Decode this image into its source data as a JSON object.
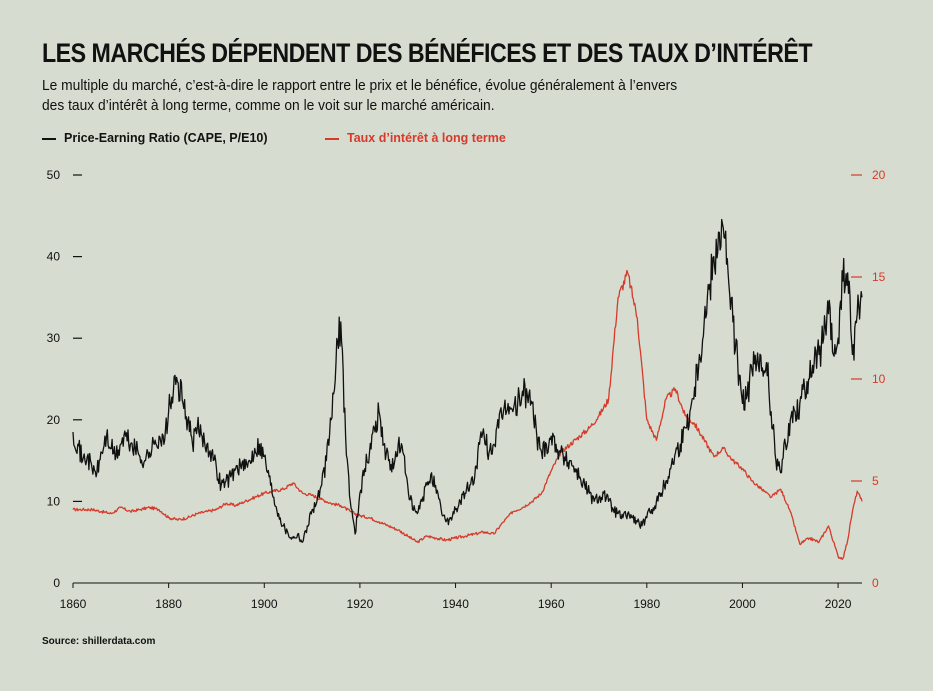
{
  "header": {
    "title": "LES MARCHÉS DÉPENDENT DES BÉNÉFICES ET DES TAUX D’INTÉRÊT",
    "subtitle": "Le multiple du marché, c’est-à-dire le rapport entre le prix et le bénéfice, évolue généralement à l’envers des taux d’intérêt à long terme, comme on le voit sur le marché américain."
  },
  "source": "Source: shillerdata.com",
  "colors": {
    "cape": "#111111",
    "rate": "#d73a2a",
    "background": "#d6dccf"
  },
  "chart_data": {
    "type": "line",
    "title": "LES MARCHÉS DÉPENDENT DES BÉNÉFICES ET DES TAUX D’INTÉRÊT",
    "xlim": [
      1860,
      2025
    ],
    "x_ticks": [
      1860,
      1880,
      1900,
      1920,
      1940,
      1960,
      1980,
      2000,
      2020
    ],
    "left_axis": {
      "ylim": [
        0,
        50
      ],
      "ticks": [
        0,
        10,
        20,
        30,
        40,
        50
      ]
    },
    "right_axis": {
      "ylim": [
        0,
        20
      ],
      "ticks": [
        0,
        5,
        10,
        15,
        20
      ]
    },
    "legend": [
      {
        "label": "Price-Earning Ratio (CAPE, P/E10)",
        "color": "#111111",
        "axis": "left"
      },
      {
        "label": "Taux d’intérêt à long terme",
        "color": "#d73a2a",
        "axis": "right"
      }
    ],
    "series": [
      {
        "name": "Price-Earning Ratio (CAPE, P/E10)",
        "axis": "left",
        "points": [
          [
            1860,
            18.5
          ],
          [
            1861,
            17
          ],
          [
            1862,
            15
          ],
          [
            1863,
            15.5
          ],
          [
            1864,
            14
          ],
          [
            1865,
            13.5
          ],
          [
            1866,
            16
          ],
          [
            1867,
            18
          ],
          [
            1868,
            16.5
          ],
          [
            1869,
            15.5
          ],
          [
            1870,
            17
          ],
          [
            1871,
            18
          ],
          [
            1872,
            17
          ],
          [
            1873,
            16.5
          ],
          [
            1874,
            15.5
          ],
          [
            1875,
            15
          ],
          [
            1876,
            16
          ],
          [
            1877,
            17
          ],
          [
            1878,
            18
          ],
          [
            1879,
            17
          ],
          [
            1880,
            21
          ],
          [
            1881,
            23.5
          ],
          [
            1882,
            24.5
          ],
          [
            1883,
            22
          ],
          [
            1884,
            20
          ],
          [
            1885,
            17
          ],
          [
            1886,
            19
          ],
          [
            1887,
            18
          ],
          [
            1888,
            17
          ],
          [
            1889,
            16
          ],
          [
            1890,
            14
          ],
          [
            1891,
            12
          ],
          [
            1892,
            12.5
          ],
          [
            1893,
            13
          ],
          [
            1894,
            14
          ],
          [
            1895,
            14.5
          ],
          [
            1896,
            14
          ],
          [
            1897,
            15
          ],
          [
            1898,
            16.5
          ],
          [
            1899,
            17
          ],
          [
            1900,
            15.5
          ],
          [
            1901,
            13
          ],
          [
            1902,
            10.5
          ],
          [
            1903,
            8.5
          ],
          [
            1904,
            7
          ],
          [
            1905,
            6
          ],
          [
            1906,
            5.5
          ],
          [
            1907,
            6
          ],
          [
            1908,
            5
          ],
          [
            1909,
            7
          ],
          [
            1910,
            9
          ],
          [
            1911,
            10
          ],
          [
            1912,
            12
          ],
          [
            1913,
            15
          ],
          [
            1914,
            20
          ],
          [
            1915,
            27
          ],
          [
            1916,
            32
          ],
          [
            1917,
            18
          ],
          [
            1918,
            10
          ],
          [
            1919,
            6
          ],
          [
            1920,
            11
          ],
          [
            1921,
            14
          ],
          [
            1922,
            16
          ],
          [
            1923,
            19
          ],
          [
            1924,
            21
          ],
          [
            1925,
            17
          ],
          [
            1926,
            15
          ],
          [
            1927,
            14
          ],
          [
            1928,
            17
          ],
          [
            1929,
            16
          ],
          [
            1930,
            12
          ],
          [
            1931,
            9
          ],
          [
            1932,
            8.5
          ],
          [
            1933,
            10
          ],
          [
            1934,
            12
          ],
          [
            1935,
            13.5
          ],
          [
            1936,
            11
          ],
          [
            1937,
            9
          ],
          [
            1938,
            7.5
          ],
          [
            1939,
            8
          ],
          [
            1940,
            9
          ],
          [
            1941,
            10
          ],
          [
            1942,
            11
          ],
          [
            1943,
            12
          ],
          [
            1944,
            13
          ],
          [
            1945,
            17
          ],
          [
            1946,
            18
          ],
          [
            1947,
            16
          ],
          [
            1948,
            17
          ],
          [
            1949,
            19
          ],
          [
            1950,
            21
          ],
          [
            1951,
            22
          ],
          [
            1952,
            21
          ],
          [
            1953,
            22
          ],
          [
            1954,
            23.5
          ],
          [
            1955,
            23
          ],
          [
            1956,
            22
          ],
          [
            1957,
            18
          ],
          [
            1958,
            16
          ],
          [
            1959,
            17
          ],
          [
            1960,
            18
          ],
          [
            1961,
            17
          ],
          [
            1962,
            16
          ],
          [
            1963,
            15
          ],
          [
            1964,
            15
          ],
          [
            1965,
            14
          ],
          [
            1966,
            13
          ],
          [
            1967,
            12
          ],
          [
            1968,
            11
          ],
          [
            1969,
            10
          ],
          [
            1970,
            10.5
          ],
          [
            1971,
            11
          ],
          [
            1972,
            10
          ],
          [
            1973,
            9
          ],
          [
            1974,
            8.5
          ],
          [
            1975,
            8
          ],
          [
            1976,
            8.5
          ],
          [
            1977,
            8
          ],
          [
            1978,
            7.5
          ],
          [
            1979,
            7
          ],
          [
            1980,
            8
          ],
          [
            1981,
            9
          ],
          [
            1982,
            10
          ],
          [
            1983,
            11
          ],
          [
            1984,
            12.5
          ],
          [
            1985,
            14
          ],
          [
            1986,
            16
          ],
          [
            1987,
            17
          ],
          [
            1988,
            19
          ],
          [
            1989,
            21
          ],
          [
            1990,
            24
          ],
          [
            1991,
            28
          ],
          [
            1992,
            32
          ],
          [
            1993,
            36
          ],
          [
            1994,
            40
          ],
          [
            1995,
            43
          ],
          [
            1996,
            43.5
          ],
          [
            1997,
            38
          ],
          [
            1998,
            32
          ],
          [
            1999,
            27
          ],
          [
            2000,
            22
          ],
          [
            2001,
            23
          ],
          [
            2002,
            26
          ],
          [
            2003,
            27
          ],
          [
            2004,
            26
          ],
          [
            2005,
            27
          ],
          [
            2006,
            21
          ],
          [
            2007,
            15
          ],
          [
            2008,
            13.5
          ],
          [
            2009,
            17
          ],
          [
            2010,
            20
          ],
          [
            2011,
            21
          ],
          [
            2012,
            22
          ],
          [
            2013,
            24
          ],
          [
            2014,
            25
          ],
          [
            2015,
            27
          ],
          [
            2016,
            28
          ],
          [
            2017,
            30
          ],
          [
            2018,
            33
          ],
          [
            2019,
            28
          ],
          [
            2020,
            30
          ],
          [
            2021,
            37
          ],
          [
            2022,
            38
          ],
          [
            2023,
            28
          ],
          [
            2024,
            33
          ],
          [
            2025,
            35
          ]
        ]
      },
      {
        "name": "Taux d’intérêt à long terme",
        "axis": "right",
        "points": [
          [
            1860,
            3.6
          ],
          [
            1862,
            3.6
          ],
          [
            1864,
            3.6
          ],
          [
            1866,
            3.5
          ],
          [
            1868,
            3.4
          ],
          [
            1870,
            3.7
          ],
          [
            1872,
            3.5
          ],
          [
            1874,
            3.6
          ],
          [
            1876,
            3.7
          ],
          [
            1878,
            3.6
          ],
          [
            1880,
            3.2
          ],
          [
            1882,
            3.1
          ],
          [
            1884,
            3.2
          ],
          [
            1886,
            3.4
          ],
          [
            1888,
            3.5
          ],
          [
            1890,
            3.6
          ],
          [
            1892,
            3.9
          ],
          [
            1894,
            3.8
          ],
          [
            1896,
            4
          ],
          [
            1898,
            4.2
          ],
          [
            1900,
            4.4
          ],
          [
            1902,
            4.5
          ],
          [
            1904,
            4.6
          ],
          [
            1906,
            4.9
          ],
          [
            1908,
            4.4
          ],
          [
            1910,
            4.3
          ],
          [
            1912,
            4.1
          ],
          [
            1914,
            3.9
          ],
          [
            1916,
            3.8
          ],
          [
            1918,
            3.5
          ],
          [
            1920,
            3.3
          ],
          [
            1922,
            3.2
          ],
          [
            1924,
            3
          ],
          [
            1926,
            2.8
          ],
          [
            1928,
            2.6
          ],
          [
            1930,
            2.3
          ],
          [
            1932,
            2
          ],
          [
            1934,
            2.3
          ],
          [
            1936,
            2.2
          ],
          [
            1938,
            2.1
          ],
          [
            1940,
            2.2
          ],
          [
            1942,
            2.3
          ],
          [
            1944,
            2.4
          ],
          [
            1946,
            2.5
          ],
          [
            1948,
            2.4
          ],
          [
            1950,
            3
          ],
          [
            1952,
            3.5
          ],
          [
            1954,
            3.7
          ],
          [
            1956,
            4
          ],
          [
            1958,
            4.4
          ],
          [
            1960,
            5.5
          ],
          [
            1962,
            6.4
          ],
          [
            1964,
            6.8
          ],
          [
            1966,
            7.2
          ],
          [
            1968,
            7.6
          ],
          [
            1970,
            8.2
          ],
          [
            1972,
            9
          ],
          [
            1974,
            14
          ],
          [
            1976,
            15.2
          ],
          [
            1978,
            13
          ],
          [
            1980,
            8
          ],
          [
            1982,
            7
          ],
          [
            1984,
            9
          ],
          [
            1986,
            9.5
          ],
          [
            1988,
            8.2
          ],
          [
            1990,
            7.8
          ],
          [
            1992,
            7
          ],
          [
            1994,
            6.2
          ],
          [
            1996,
            6.6
          ],
          [
            1998,
            6
          ],
          [
            2000,
            5.6
          ],
          [
            2002,
            5
          ],
          [
            2004,
            4.6
          ],
          [
            2006,
            4.2
          ],
          [
            2008,
            4.6
          ],
          [
            2010,
            3.5
          ],
          [
            2012,
            1.9
          ],
          [
            2014,
            2.2
          ],
          [
            2016,
            2
          ],
          [
            2018,
            2.8
          ],
          [
            2020,
            1.3
          ],
          [
            2021,
            1.2
          ],
          [
            2022,
            2.1
          ],
          [
            2023,
            3.5
          ],
          [
            2024,
            4.5
          ],
          [
            2025,
            4
          ]
        ]
      }
    ]
  }
}
